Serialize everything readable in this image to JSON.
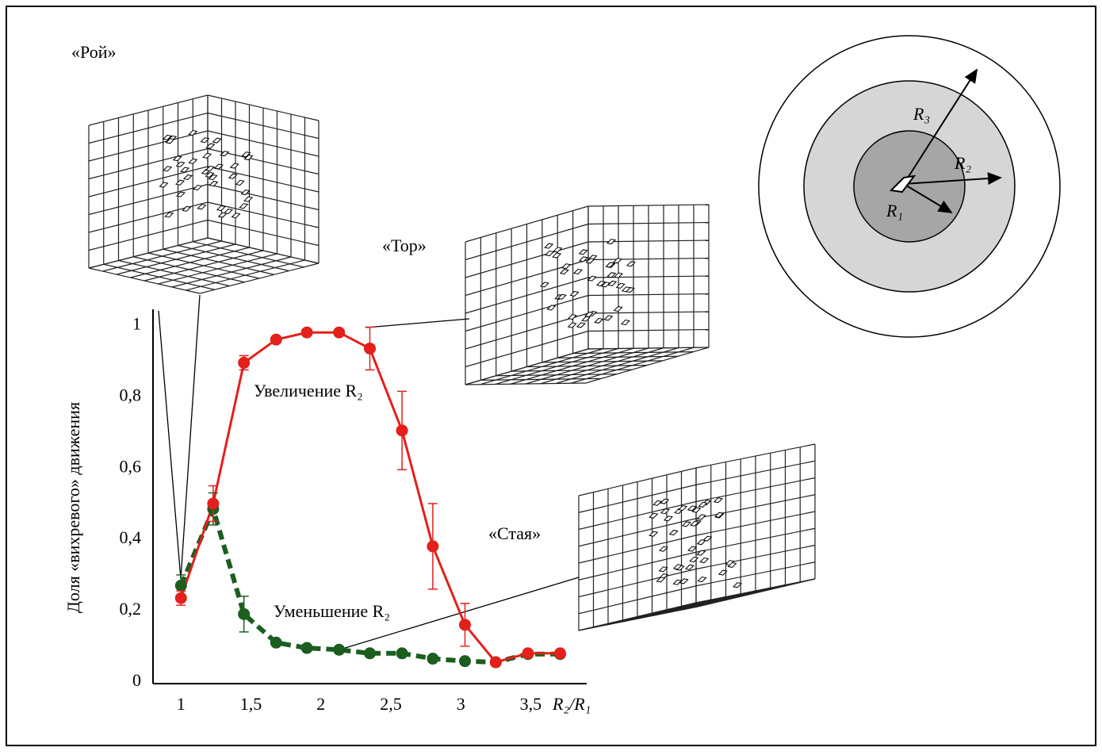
{
  "chart_data": {
    "type": "line",
    "x_label": "R₂/R₁",
    "y_label": "Доля «вихревого» движения",
    "x": [
      1,
      1.23,
      1.45,
      1.68,
      1.9,
      2.13,
      2.35,
      2.58,
      2.8,
      3.03,
      3.25,
      3.48,
      3.71
    ],
    "series": [
      {
        "name": "Увеличение R₂",
        "color": "#e3201b",
        "values": [
          0.24,
          0.505,
          0.9,
          0.965,
          0.985,
          0.985,
          0.94,
          0.71,
          0.385,
          0.165,
          0.06,
          0.085,
          0.085
        ],
        "errors": [
          0.02,
          0.05,
          0.02,
          0,
          0,
          0,
          0.06,
          0.11,
          0.12,
          0.06,
          0,
          0,
          0
        ]
      },
      {
        "name": "Уменьшение R₂",
        "color": "#1b5e20",
        "values": [
          0.275,
          0.49,
          0.195,
          0.115,
          0.1,
          0.095,
          0.085,
          0.085,
          0.07,
          0.063,
          0.06,
          0.083,
          0.083
        ],
        "errors": [
          0.03,
          0.045,
          0.05,
          0,
          0,
          0,
          0,
          0,
          0,
          0,
          0,
          0,
          0
        ]
      }
    ],
    "xlim": [
      0.8,
      3.9
    ],
    "ylim": [
      0,
      1.05
    ],
    "xticks": [
      1,
      {
        "value": 1.5,
        "label": "1,5"
      },
      2,
      {
        "value": 2.5,
        "label": "2,5"
      },
      3,
      {
        "value": 3.5,
        "label": "3,5"
      }
    ],
    "yticks": [
      0,
      {
        "value": 0.2,
        "label": "0,2"
      },
      {
        "value": 0.4,
        "label": "0,4"
      },
      {
        "value": 0.6,
        "label": "0,6"
      },
      {
        "value": 0.8,
        "label": "0,8"
      },
      1
    ],
    "annotations": [
      "«Рой»",
      "«Тор»",
      "«Стая»"
    ],
    "radius_labels": [
      "R₁",
      "R₂",
      "R₃"
    ]
  }
}
